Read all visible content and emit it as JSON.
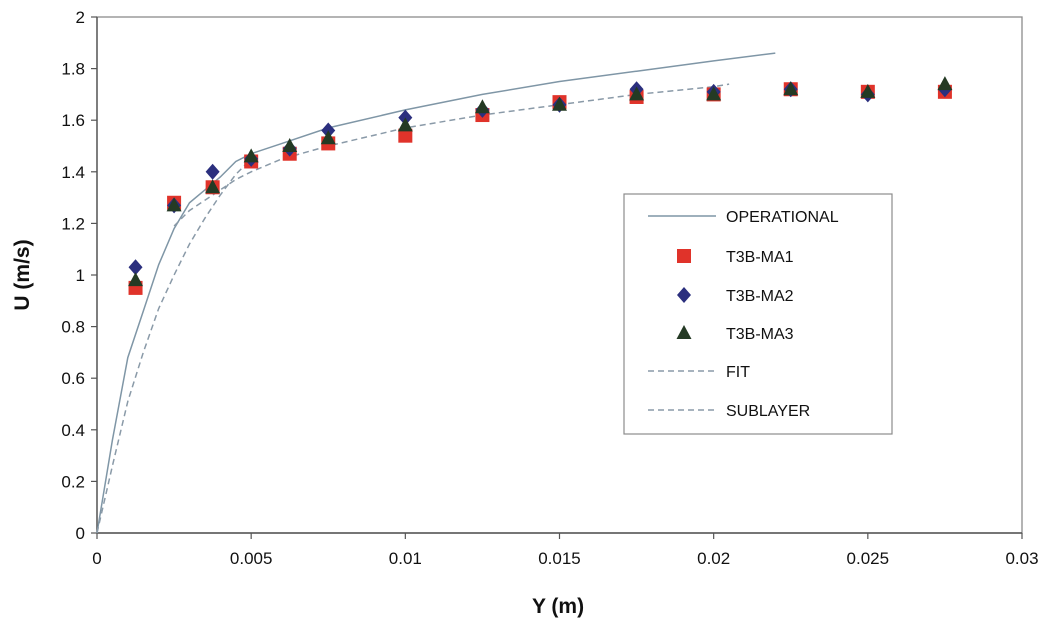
{
  "chart_data": {
    "type": "scatter",
    "xlabel": "Y (m)",
    "ylabel": "U (m/s)",
    "xlim": [
      0,
      0.03
    ],
    "ylim": [
      0,
      2
    ],
    "x_ticks": [
      0,
      0.005,
      0.01,
      0.015,
      0.02,
      0.025,
      0.03
    ],
    "x_tick_labels": [
      "0",
      "0.005",
      "0.01",
      "0.015",
      "0.02",
      "0.025",
      "0.03"
    ],
    "y_ticks": [
      0,
      0.2,
      0.4,
      0.6,
      0.8,
      1,
      1.2,
      1.4,
      1.6,
      1.8,
      2
    ],
    "y_tick_labels": [
      "0",
      "0.2",
      "0.4",
      "0.6",
      "0.8",
      "1",
      "1.2",
      "1.4",
      "1.6",
      "1.8",
      "2"
    ],
    "grid": false,
    "legend_position": "center-right",
    "series": [
      {
        "name": "OPERATIONAL",
        "kind": "line",
        "style": "solid",
        "color": "#7f96a6",
        "points": [
          [
            0,
            0
          ],
          [
            0.0005,
            0.36
          ],
          [
            0.001,
            0.68
          ],
          [
            0.0015,
            0.86
          ],
          [
            0.002,
            1.04
          ],
          [
            0.0025,
            1.18
          ],
          [
            0.003,
            1.28
          ],
          [
            0.0035,
            1.33
          ],
          [
            0.004,
            1.38
          ],
          [
            0.0045,
            1.44
          ],
          [
            0.005,
            1.47
          ],
          [
            0.006,
            1.51
          ],
          [
            0.0075,
            1.57
          ],
          [
            0.01,
            1.64
          ],
          [
            0.0125,
            1.7
          ],
          [
            0.015,
            1.75
          ],
          [
            0.0175,
            1.79
          ],
          [
            0.02,
            1.83
          ],
          [
            0.022,
            1.86
          ]
        ]
      },
      {
        "name": "T3B-MA1",
        "kind": "marker",
        "marker": "square",
        "color": "#e0332a",
        "points": [
          [
            0.00125,
            0.95
          ],
          [
            0.0025,
            1.28
          ],
          [
            0.00375,
            1.34
          ],
          [
            0.005,
            1.44
          ],
          [
            0.00625,
            1.47
          ],
          [
            0.0075,
            1.51
          ],
          [
            0.01,
            1.54
          ],
          [
            0.0125,
            1.62
          ],
          [
            0.015,
            1.67
          ],
          [
            0.0175,
            1.69
          ],
          [
            0.02,
            1.7
          ],
          [
            0.0225,
            1.72
          ],
          [
            0.025,
            1.71
          ],
          [
            0.0275,
            1.71
          ]
        ]
      },
      {
        "name": "T3B-MA2",
        "kind": "marker",
        "marker": "diamond",
        "color": "#2b2f7e",
        "points": [
          [
            0.00125,
            1.03
          ],
          [
            0.0025,
            1.27
          ],
          [
            0.00375,
            1.4
          ],
          [
            0.005,
            1.45
          ],
          [
            0.00625,
            1.49
          ],
          [
            0.0075,
            1.56
          ],
          [
            0.01,
            1.61
          ],
          [
            0.0125,
            1.64
          ],
          [
            0.015,
            1.66
          ],
          [
            0.0175,
            1.72
          ],
          [
            0.02,
            1.71
          ],
          [
            0.0225,
            1.72
          ],
          [
            0.025,
            1.7
          ],
          [
            0.0275,
            1.72
          ]
        ]
      },
      {
        "name": "T3B-MA3",
        "kind": "marker",
        "marker": "triangle",
        "color": "#243a24",
        "points": [
          [
            0.00125,
            0.98
          ],
          [
            0.0025,
            1.27
          ],
          [
            0.00375,
            1.34
          ],
          [
            0.005,
            1.46
          ],
          [
            0.00625,
            1.5
          ],
          [
            0.0075,
            1.53
          ],
          [
            0.01,
            1.58
          ],
          [
            0.0125,
            1.65
          ],
          [
            0.015,
            1.66
          ],
          [
            0.0175,
            1.7
          ],
          [
            0.02,
            1.7
          ],
          [
            0.0225,
            1.72
          ],
          [
            0.025,
            1.71
          ],
          [
            0.0275,
            1.74
          ]
        ]
      },
      {
        "name": "FIT",
        "kind": "line",
        "style": "dashed",
        "color": "#8a9aa8",
        "points": [
          [
            0.0025,
            1.19
          ],
          [
            0.003,
            1.25
          ],
          [
            0.0035,
            1.29
          ],
          [
            0.004,
            1.33
          ],
          [
            0.0045,
            1.37
          ],
          [
            0.005,
            1.4
          ],
          [
            0.006,
            1.45
          ],
          [
            0.0075,
            1.5
          ],
          [
            0.01,
            1.57
          ],
          [
            0.0125,
            1.62
          ],
          [
            0.015,
            1.66
          ],
          [
            0.0175,
            1.7
          ],
          [
            0.02,
            1.73
          ],
          [
            0.0205,
            1.74
          ]
        ]
      },
      {
        "name": "SUBLAYER",
        "kind": "line",
        "style": "dashed",
        "color": "#8a9aa8",
        "points": [
          [
            0,
            0
          ],
          [
            0.0005,
            0.26
          ],
          [
            0.001,
            0.51
          ],
          [
            0.0015,
            0.7
          ],
          [
            0.002,
            0.87
          ],
          [
            0.0025,
            1.0
          ],
          [
            0.003,
            1.12
          ],
          [
            0.0035,
            1.22
          ],
          [
            0.004,
            1.31
          ],
          [
            0.0045,
            1.39
          ],
          [
            0.005,
            1.45
          ]
        ]
      }
    ]
  }
}
